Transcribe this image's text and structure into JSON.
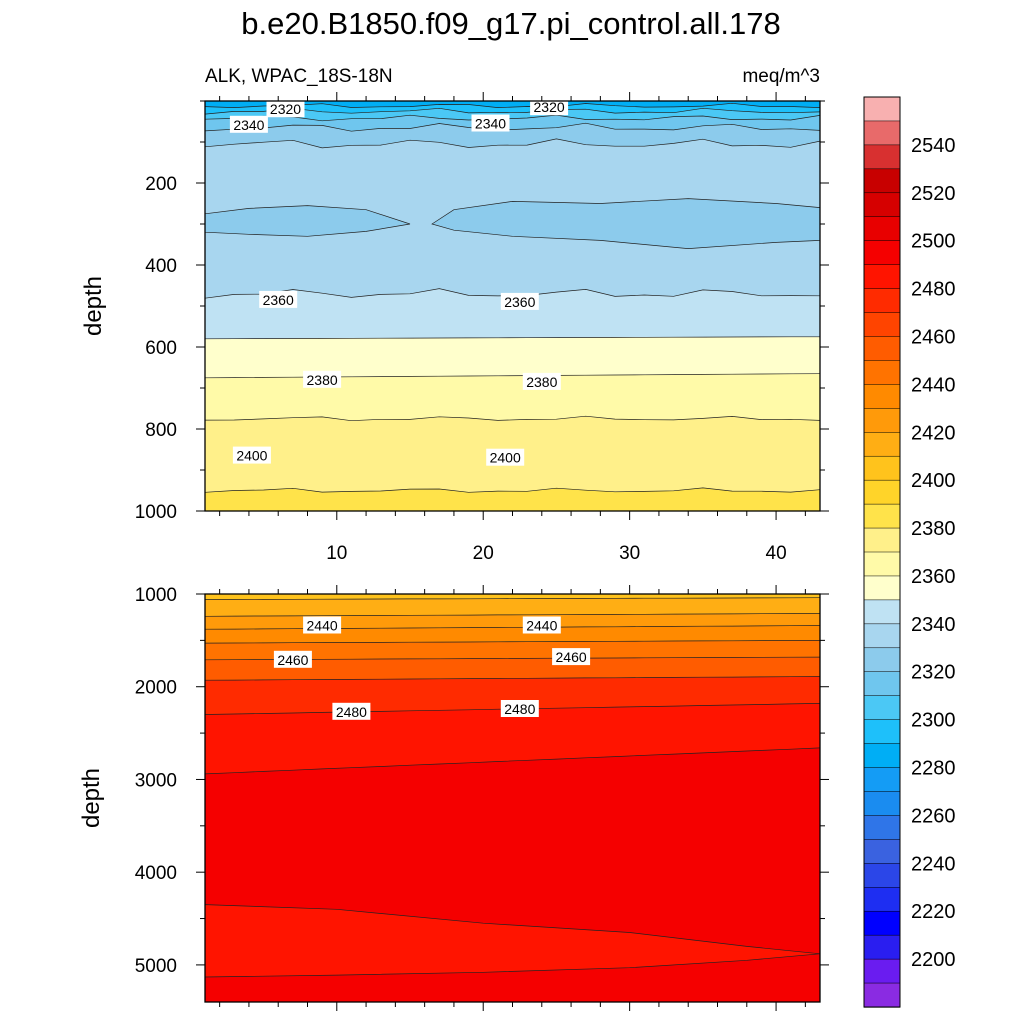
{
  "figure": {
    "title": "b.e20.B1850.f09_g17.pi_control.all.178",
    "left_subtitle": "ALK, WPAC_18S-18N",
    "right_subtitle": "meq/m^3"
  },
  "colorbar": {
    "labels": [
      "2200",
      "2220",
      "2240",
      "2260",
      "2280",
      "2300",
      "2320",
      "2340",
      "2360",
      "2380",
      "2400",
      "2420",
      "2440",
      "2460",
      "2480",
      "2500",
      "2520",
      "2540"
    ],
    "colors": [
      "#8a2be2",
      "#6a1cf0",
      "#2a1ef0",
      "#0000ff",
      "#1e2ef2",
      "#2b46e8",
      "#3a62e0",
      "#2f75e8",
      "#1a8cf0",
      "#149cf5",
      "#00aef5",
      "#1ec0fa",
      "#4bc8f5",
      "#6fc6ee",
      "#8ccbec",
      "#a8d6ef",
      "#bfe2f3",
      "#ffffcc",
      "#fffaa8",
      "#fff08a",
      "#ffe34a",
      "#ffd429",
      "#ffc31c",
      "#ffae14",
      "#ff9a0a",
      "#ff8a00",
      "#ff7300",
      "#ff5c00",
      "#ff4400",
      "#ff2b00",
      "#ff1400",
      "#f50000",
      "#e80000",
      "#d60000",
      "#c80000",
      "#d83030",
      "#e86a6a",
      "#f8b0b0"
    ]
  },
  "chart_data": [
    {
      "type": "contour",
      "panel": "upper (0-1000 m)",
      "ylabel": "depth",
      "xlim": [
        1,
        43
      ],
      "ylim": [
        1000,
        0
      ],
      "x_ticks": [
        10,
        20,
        30,
        40
      ],
      "y_ticks": [
        200,
        400,
        600,
        800,
        1000
      ],
      "contour_interval": 5,
      "bands": [
        {
          "range": [
            2310,
            2315
          ],
          "color": "#00aef5"
        },
        {
          "range": [
            2315,
            2320
          ],
          "color": "#1ec0fa"
        },
        {
          "range": [
            2320,
            2325
          ],
          "color": "#4bc8f5"
        },
        {
          "range": [
            2325,
            2335
          ],
          "color": "#6fc6ee"
        },
        {
          "range": [
            2335,
            2340
          ],
          "color": "#8ccbec"
        },
        {
          "range": [
            2340,
            2355
          ],
          "color": "#a8d6ef"
        },
        {
          "range": [
            2355,
            2360
          ],
          "color": "#bfe2f3"
        },
        {
          "range": [
            2360,
            2380
          ],
          "color": "#ffffcc"
        },
        {
          "range": [
            2380,
            2390
          ],
          "color": "#fffaa8"
        },
        {
          "range": [
            2390,
            2400
          ],
          "color": "#fff08a"
        },
        {
          "range": [
            2400,
            2410
          ],
          "color": "#ffe34a"
        }
      ],
      "contour_labels": [
        {
          "text": "2320",
          "x": 6.5,
          "y": 20
        },
        {
          "text": "2320",
          "x": 24.5,
          "y": 15
        },
        {
          "text": "2340",
          "x": 4,
          "y": 58
        },
        {
          "text": "2340",
          "x": 20.5,
          "y": 55
        },
        {
          "text": "2360",
          "x": 6,
          "y": 485
        },
        {
          "text": "2360",
          "x": 22.5,
          "y": 490
        },
        {
          "text": "2380",
          "x": 9,
          "y": 680
        },
        {
          "text": "2380",
          "x": 24,
          "y": 685
        },
        {
          "text": "2400",
          "x": 4.2,
          "y": 865
        },
        {
          "text": "2400",
          "x": 21.5,
          "y": 870
        }
      ]
    },
    {
      "type": "contour",
      "panel": "lower (1000-5400 m)",
      "ylabel": "depth",
      "xlim": [
        1,
        43
      ],
      "ylim": [
        5400,
        1000
      ],
      "y_ticks": [
        1000,
        2000,
        3000,
        4000,
        5000
      ],
      "contour_interval": 5,
      "bands": [
        {
          "range": [
            2425,
            2430
          ],
          "color": "#ffc31c"
        },
        {
          "range": [
            2430,
            2435
          ],
          "color": "#ffae14"
        },
        {
          "range": [
            2435,
            2445
          ],
          "color": "#ff9a0a"
        },
        {
          "range": [
            2445,
            2455
          ],
          "color": "#ff8a00"
        },
        {
          "range": [
            2455,
            2465
          ],
          "color": "#ff7300"
        },
        {
          "range": [
            2465,
            2475
          ],
          "color": "#ff5c00"
        },
        {
          "range": [
            2475,
            2485
          ],
          "color": "#ff2b00"
        },
        {
          "range": [
            2485,
            2490
          ],
          "color": "#ff1400"
        },
        {
          "range": [
            2490,
            2495
          ],
          "color": "#f50000"
        }
      ],
      "contour_labels": [
        {
          "text": "2440",
          "x": 9,
          "y": 1340
        },
        {
          "text": "2440",
          "x": 24,
          "y": 1340
        },
        {
          "text": "2460",
          "x": 7,
          "y": 1710
        },
        {
          "text": "2460",
          "x": 26,
          "y": 1680
        },
        {
          "text": "2480",
          "x": 11,
          "y": 2270
        },
        {
          "text": "2480",
          "x": 22.5,
          "y": 2240
        }
      ]
    }
  ]
}
